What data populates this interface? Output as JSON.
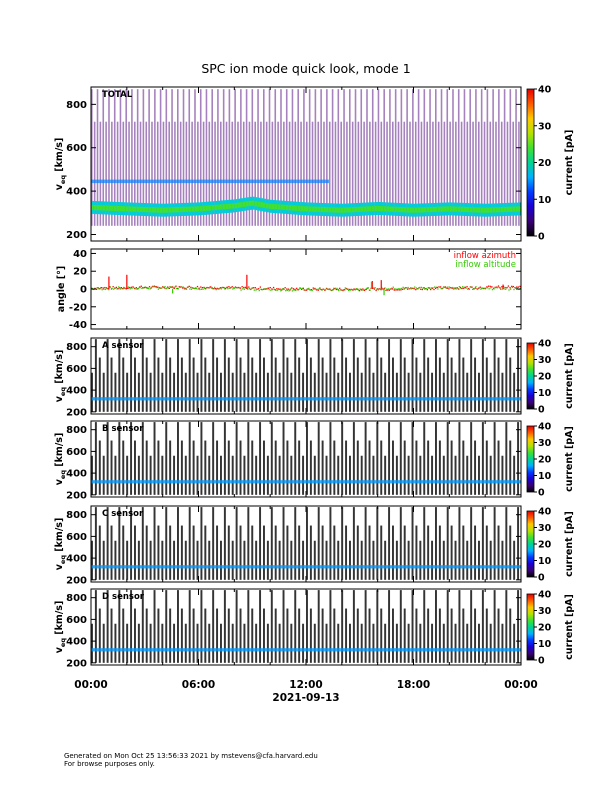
{
  "chart_data": {
    "type": "heatmap",
    "title": "SPC ion mode quick look, mode 1",
    "date_label": "2021-09-13",
    "x_tick_labels": [
      "00:00",
      "06:00",
      "12:00",
      "18:00",
      "00:00"
    ],
    "x_range_hours": [
      0,
      24
    ],
    "panels": [
      {
        "id": "total",
        "type": "heatmap",
        "label": "TOTAL",
        "ylabel_main": "v",
        "ylabel_sub": "eq",
        "ylabel_unit": "[km/s]",
        "ylim": [
          170,
          880
        ],
        "yticks": [
          200,
          400,
          600,
          800
        ],
        "colorbar": {
          "label": "current [pA]",
          "range": [
            0,
            40
          ],
          "ticks": [
            0,
            10,
            20,
            30,
            40
          ]
        },
        "beam_center_kms": [
          {
            "t": 0,
            "v": 325
          },
          {
            "t": 2,
            "v": 318
          },
          {
            "t": 4,
            "v": 312
          },
          {
            "t": 6,
            "v": 318
          },
          {
            "t": 8,
            "v": 332
          },
          {
            "t": 9,
            "v": 345
          },
          {
            "t": 10,
            "v": 330
          },
          {
            "t": 12,
            "v": 318
          },
          {
            "t": 14,
            "v": 312
          },
          {
            "t": 16,
            "v": 320
          },
          {
            "t": 18,
            "v": 312
          },
          {
            "t": 20,
            "v": 318
          },
          {
            "t": 22,
            "v": 312
          },
          {
            "t": 24,
            "v": 318
          }
        ],
        "faint_band_kms": 445
      },
      {
        "id": "angle",
        "type": "scatter",
        "ylabel": "angle [°]",
        "ylim": [
          -45,
          45
        ],
        "yticks": [
          -40,
          -20,
          0,
          20,
          40
        ],
        "series": [
          {
            "name": "inflow azimuth",
            "color": "#ff0000"
          },
          {
            "name": "inflow altitude",
            "color": "#33cc00"
          }
        ],
        "azimuth_spikes": [
          {
            "t": 1.0,
            "v": 14
          },
          {
            "t": 2.0,
            "v": 16
          },
          {
            "t": 8.7,
            "v": 16
          },
          {
            "t": 15.7,
            "v": 9
          },
          {
            "t": 16.2,
            "v": 10
          },
          {
            "t": 23.0,
            "v": 5
          }
        ],
        "altitude_spikes": [
          {
            "t": 15.6,
            "v": 8
          },
          {
            "t": 16.3,
            "v": -7
          },
          {
            "t": 4.5,
            "v": -5
          }
        ]
      },
      {
        "id": "a",
        "type": "heatmap",
        "label": "A sensor",
        "ylabel_main": "v",
        "ylabel_sub": "eq",
        "ylabel_unit": "[km/s]",
        "ylim": [
          180,
          880
        ],
        "yticks": [
          200,
          400,
          600,
          800
        ],
        "colorbar": {
          "label": "current [pA]",
          "range": [
            0,
            40
          ],
          "ticks": [
            0,
            10,
            20,
            30,
            40
          ]
        },
        "beam_center_kms": 320
      },
      {
        "id": "b",
        "type": "heatmap",
        "label": "B sensor",
        "ylabel_main": "v",
        "ylabel_sub": "eq",
        "ylabel_unit": "[km/s]",
        "ylim": [
          180,
          880
        ],
        "yticks": [
          200,
          400,
          600,
          800
        ],
        "colorbar": {
          "label": "current [pA]",
          "range": [
            0,
            40
          ],
          "ticks": [
            0,
            10,
            20,
            30,
            40
          ]
        },
        "beam_center_kms": 320
      },
      {
        "id": "c",
        "type": "heatmap",
        "label": "C sensor",
        "ylabel_main": "v",
        "ylabel_sub": "eq",
        "ylabel_unit": "[km/s]",
        "ylim": [
          180,
          880
        ],
        "yticks": [
          200,
          400,
          600,
          800
        ],
        "colorbar": {
          "label": "current [pA]",
          "range": [
            0,
            40
          ],
          "ticks": [
            0,
            10,
            20,
            30,
            40
          ]
        },
        "beam_center_kms": 320
      },
      {
        "id": "d",
        "type": "heatmap",
        "label": "D sensor",
        "ylabel_main": "v",
        "ylabel_sub": "eq",
        "ylabel_unit": "[km/s]",
        "ylim": [
          180,
          880
        ],
        "yticks": [
          200,
          400,
          600,
          800
        ],
        "colorbar": {
          "label": "current [pA]",
          "range": [
            0,
            40
          ],
          "ticks": [
            0,
            10,
            20,
            30,
            40
          ]
        },
        "beam_center_kms": 320
      }
    ]
  },
  "footer": {
    "line1": "Generated on Mon Oct 25 13:56:33 2021 by mstevens@cfa.harvard.edu",
    "line2": "For browse purposes only."
  }
}
